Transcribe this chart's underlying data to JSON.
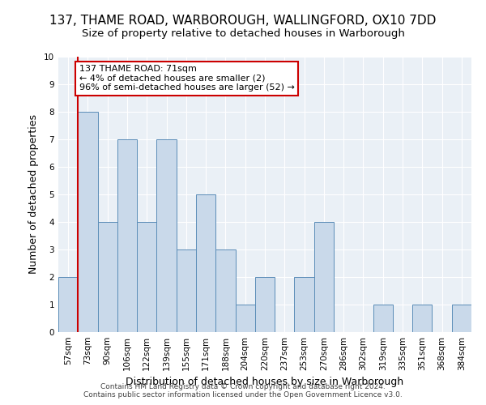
{
  "title1": "137, THAME ROAD, WARBOROUGH, WALLINGFORD, OX10 7DD",
  "title2": "Size of property relative to detached houses in Warborough",
  "xlabel": "Distribution of detached houses by size in Warborough",
  "ylabel": "Number of detached properties",
  "categories": [
    "57sqm",
    "73sqm",
    "90sqm",
    "106sqm",
    "122sqm",
    "139sqm",
    "155sqm",
    "171sqm",
    "188sqm",
    "204sqm",
    "220sqm",
    "237sqm",
    "253sqm",
    "270sqm",
    "286sqm",
    "302sqm",
    "319sqm",
    "335sqm",
    "351sqm",
    "368sqm",
    "384sqm"
  ],
  "values": [
    2,
    8,
    4,
    7,
    4,
    7,
    3,
    5,
    3,
    1,
    2,
    0,
    2,
    4,
    0,
    0,
    1,
    0,
    1,
    0,
    1
  ],
  "bar_color": "#c9d9ea",
  "bar_edge_color": "#5b8db8",
  "highlight_line_color": "#cc0000",
  "annotation_text": "137 THAME ROAD: 71sqm\n← 4% of detached houses are smaller (2)\n96% of semi-detached houses are larger (52) →",
  "annotation_box_color": "#cc0000",
  "ylim": [
    0,
    10
  ],
  "yticks": [
    0,
    1,
    2,
    3,
    4,
    5,
    6,
    7,
    8,
    9,
    10
  ],
  "footer1": "Contains HM Land Registry data © Crown copyright and database right 2024.",
  "footer2": "Contains public sector information licensed under the Open Government Licence v3.0.",
  "bg_color": "#eaf0f6",
  "grid_color": "#ffffff",
  "title1_fontsize": 11,
  "title2_fontsize": 9.5,
  "tick_fontsize": 7.5,
  "ylabel_fontsize": 9,
  "xlabel_fontsize": 9,
  "annotation_fontsize": 8,
  "footer_fontsize": 6.5
}
